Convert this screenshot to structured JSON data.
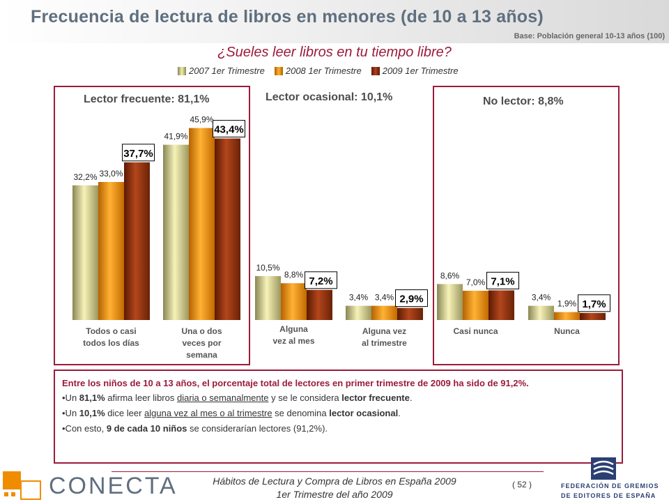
{
  "title": "Frecuencia de lectura de libros en menores (de 10 a 13 años)",
  "base": "Base: Población general 10-13 años (100)",
  "question": "¿Sueles leer libros en tu tiempo libre?",
  "groups": {
    "frecuente": "Lector frecuente: 81,1%",
    "ocasional": "Lector ocasional: 10,1%",
    "no_lector": "No lector: 8,8%"
  },
  "chart_data": {
    "type": "bar",
    "categories": [
      "Todos o casi todos los días",
      "Una o dos veces por semana",
      "Alguna vez al mes",
      "Alguna vez al trimestre",
      "Casi nunca",
      "Nunca"
    ],
    "series": [
      {
        "name": "2007 1er Trimestre",
        "color": "#d8d27a",
        "values": [
          32.2,
          41.9,
          10.5,
          3.4,
          8.6,
          3.4
        ],
        "labels": [
          "32,2%",
          "41,9%",
          "10,5%",
          "3,4%",
          "8,6%",
          "3,4%"
        ]
      },
      {
        "name": "2008 1er Trimestre",
        "color": "#f08c00",
        "values": [
          33.0,
          45.9,
          8.8,
          3.4,
          7.0,
          1.9
        ],
        "labels": [
          "33,0%",
          "45,9%",
          "8,8%",
          "3,4%",
          "7,0%",
          "1,9%"
        ]
      },
      {
        "name": "2009 1er Trimestre",
        "color": "#8b2a05",
        "values": [
          37.7,
          43.4,
          7.2,
          2.9,
          7.1,
          1.7
        ],
        "labels": [
          "37,7%",
          "43,4%",
          "7,2%",
          "2,9%",
          "7,1%",
          "1,7%"
        ]
      }
    ],
    "ylim": [
      0,
      50
    ]
  },
  "cat_labels": [
    [
      "Todos o casi",
      "todos los días"
    ],
    [
      "Una o dos",
      "veces por",
      "semana"
    ],
    [
      "Alguna",
      "vez al mes"
    ],
    [
      "Alguna vez",
      "al trimestre"
    ],
    [
      "Casi nunca"
    ],
    [
      "Nunca"
    ]
  ],
  "note": {
    "main": "Entre los niños de 10 a 13 años, el porcentaje total de lectores en primer trimestre de 2009 ha sido de 91,2%.",
    "b1_pre": "•Un ",
    "b1_pct": "81,1%",
    "b1_mid": " afirma leer libros ",
    "b1_u": "diaria o semanalmente",
    "b1_mid2": " y se le considera ",
    "b1_bold": "lector frecuente",
    "b1_end": ".",
    "b2_pre": "•Un ",
    "b2_pct": "10,1%",
    "b2_mid": " dice leer ",
    "b2_u": "alguna vez al mes o al trimestre",
    "b2_mid2": " se denomina ",
    "b2_bold": "lector ocasional",
    "b2_end": ".",
    "b3_pre": "•Con esto, ",
    "b3_bold": "9 de cada 10 niños",
    "b3_end": " se considerarían lectores (91,2%)."
  },
  "footer": {
    "line1": "Hábitos de Lectura y Compra de Libros en España 2009",
    "line2": "1er Trimestre del año 2009",
    "page": "( 52 )",
    "conecta": "CONECTA",
    "fed1": "FEDERACIÓN DE GREMIOS",
    "fed2": "DE EDITORES DE ESPAÑA"
  }
}
